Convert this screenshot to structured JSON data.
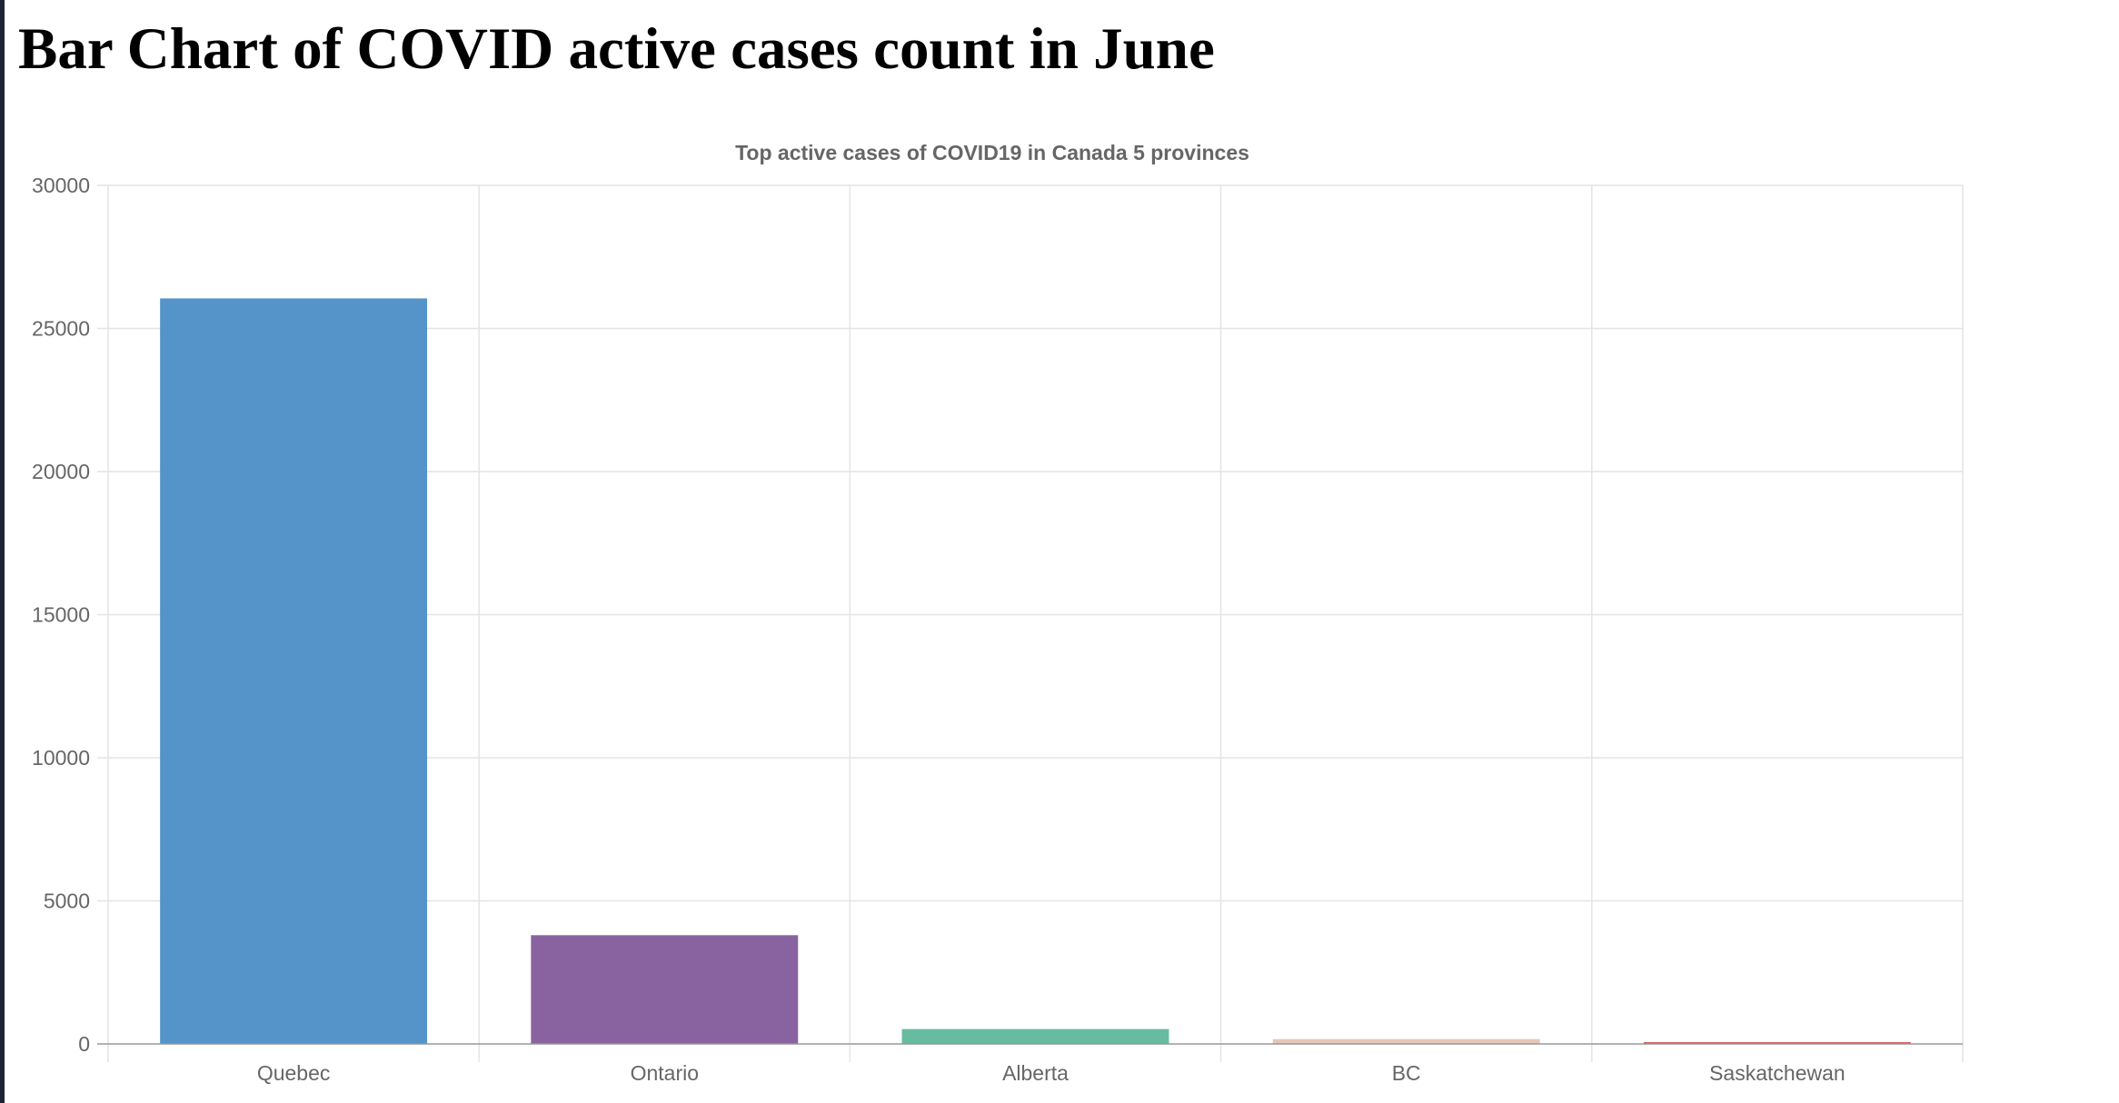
{
  "page": {
    "title": "Bar Chart of COVID active cases count in June"
  },
  "chart_data": {
    "type": "bar",
    "title": "Top active cases of COVID19 in Canada 5 provinces",
    "categories": [
      "Quebec",
      "Ontario",
      "Alberta",
      "BC",
      "Saskatchewan"
    ],
    "values": [
      26050,
      3800,
      520,
      170,
      60
    ],
    "colors": [
      "#5494c8",
      "#8962a0",
      "#67bba0",
      "#e6c6b8",
      "#c9504d"
    ],
    "xlabel": "",
    "ylabel": "",
    "ylim": [
      0,
      30000
    ],
    "yticks": [
      0,
      5000,
      10000,
      15000,
      20000,
      25000,
      30000
    ],
    "grid": true,
    "legend": "none",
    "grid_color": "#e4e4e4",
    "axis_color": "#999999",
    "text_color": "#666666"
  }
}
